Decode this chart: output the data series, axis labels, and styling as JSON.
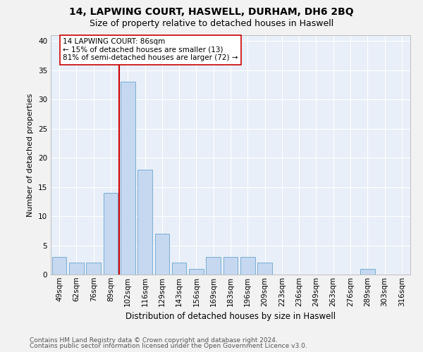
{
  "title1": "14, LAPWING COURT, HASWELL, DURHAM, DH6 2BQ",
  "title2": "Size of property relative to detached houses in Haswell",
  "xlabel": "Distribution of detached houses by size in Haswell",
  "ylabel": "Number of detached properties",
  "categories": [
    "49sqm",
    "62sqm",
    "76sqm",
    "89sqm",
    "102sqm",
    "116sqm",
    "129sqm",
    "143sqm",
    "156sqm",
    "169sqm",
    "183sqm",
    "196sqm",
    "209sqm",
    "223sqm",
    "236sqm",
    "249sqm",
    "263sqm",
    "276sqm",
    "289sqm",
    "303sqm",
    "316sqm"
  ],
  "values": [
    3,
    2,
    2,
    14,
    33,
    18,
    7,
    2,
    1,
    3,
    3,
    3,
    2,
    0,
    0,
    0,
    0,
    0,
    1,
    0,
    0
  ],
  "bar_color": "#c5d8f0",
  "bar_edge_color": "#7aadd4",
  "vline_x": 3.5,
  "vline_color": "#cc0000",
  "annotation_text": "14 LAPWING COURT: 86sqm\n← 15% of detached houses are smaller (13)\n81% of semi-detached houses are larger (72) →",
  "annotation_box_color": "#ffffff",
  "annotation_box_edge": "#cc0000",
  "ylim": [
    0,
    41
  ],
  "yticks": [
    0,
    5,
    10,
    15,
    20,
    25,
    30,
    35,
    40
  ],
  "footer1": "Contains HM Land Registry data © Crown copyright and database right 2024.",
  "footer2": "Contains public sector information licensed under the Open Government Licence v3.0.",
  "bg_color": "#e8eff8",
  "grid_color": "#ffffff",
  "fig_bg_color": "#f2f2f2",
  "title1_fontsize": 10,
  "title2_fontsize": 9,
  "xlabel_fontsize": 8.5,
  "ylabel_fontsize": 8,
  "tick_fontsize": 7.5,
  "footer_fontsize": 6.5,
  "ann_fontsize": 7.5
}
